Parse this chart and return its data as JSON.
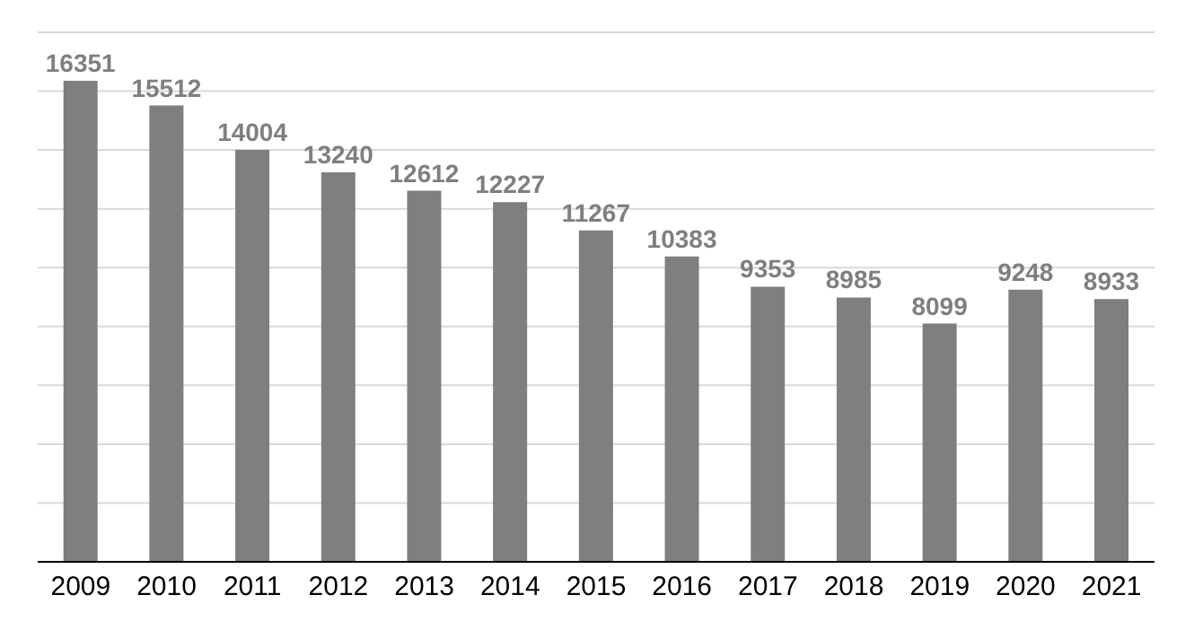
{
  "chart_data": {
    "type": "bar",
    "categories": [
      "2009",
      "2010",
      "2011",
      "2012",
      "2013",
      "2014",
      "2015",
      "2016",
      "2017",
      "2018",
      "2019",
      "2020",
      "2021"
    ],
    "values": [
      16351,
      15512,
      14004,
      13240,
      12612,
      12227,
      11267,
      10383,
      9353,
      8985,
      8099,
      9248,
      8933
    ],
    "color": "#7f7f7f",
    "data_labels": true,
    "ylim": [
      0,
      18000
    ],
    "yticks": [
      {
        "value": 0,
        "label": null
      },
      {
        "value": 2000,
        "label": null
      },
      {
        "value": 4000,
        "label": null
      },
      {
        "value": 6000,
        "label": null
      },
      {
        "value": 8000,
        "label": null
      },
      {
        "value": 10000,
        "label": null
      },
      {
        "value": 12000,
        "label": null
      },
      {
        "value": 14000,
        "label": null
      },
      {
        "value": 16000,
        "label": null
      },
      {
        "value": 18000,
        "label": null
      }
    ],
    "grid": "y",
    "tick_labels": "x"
  }
}
